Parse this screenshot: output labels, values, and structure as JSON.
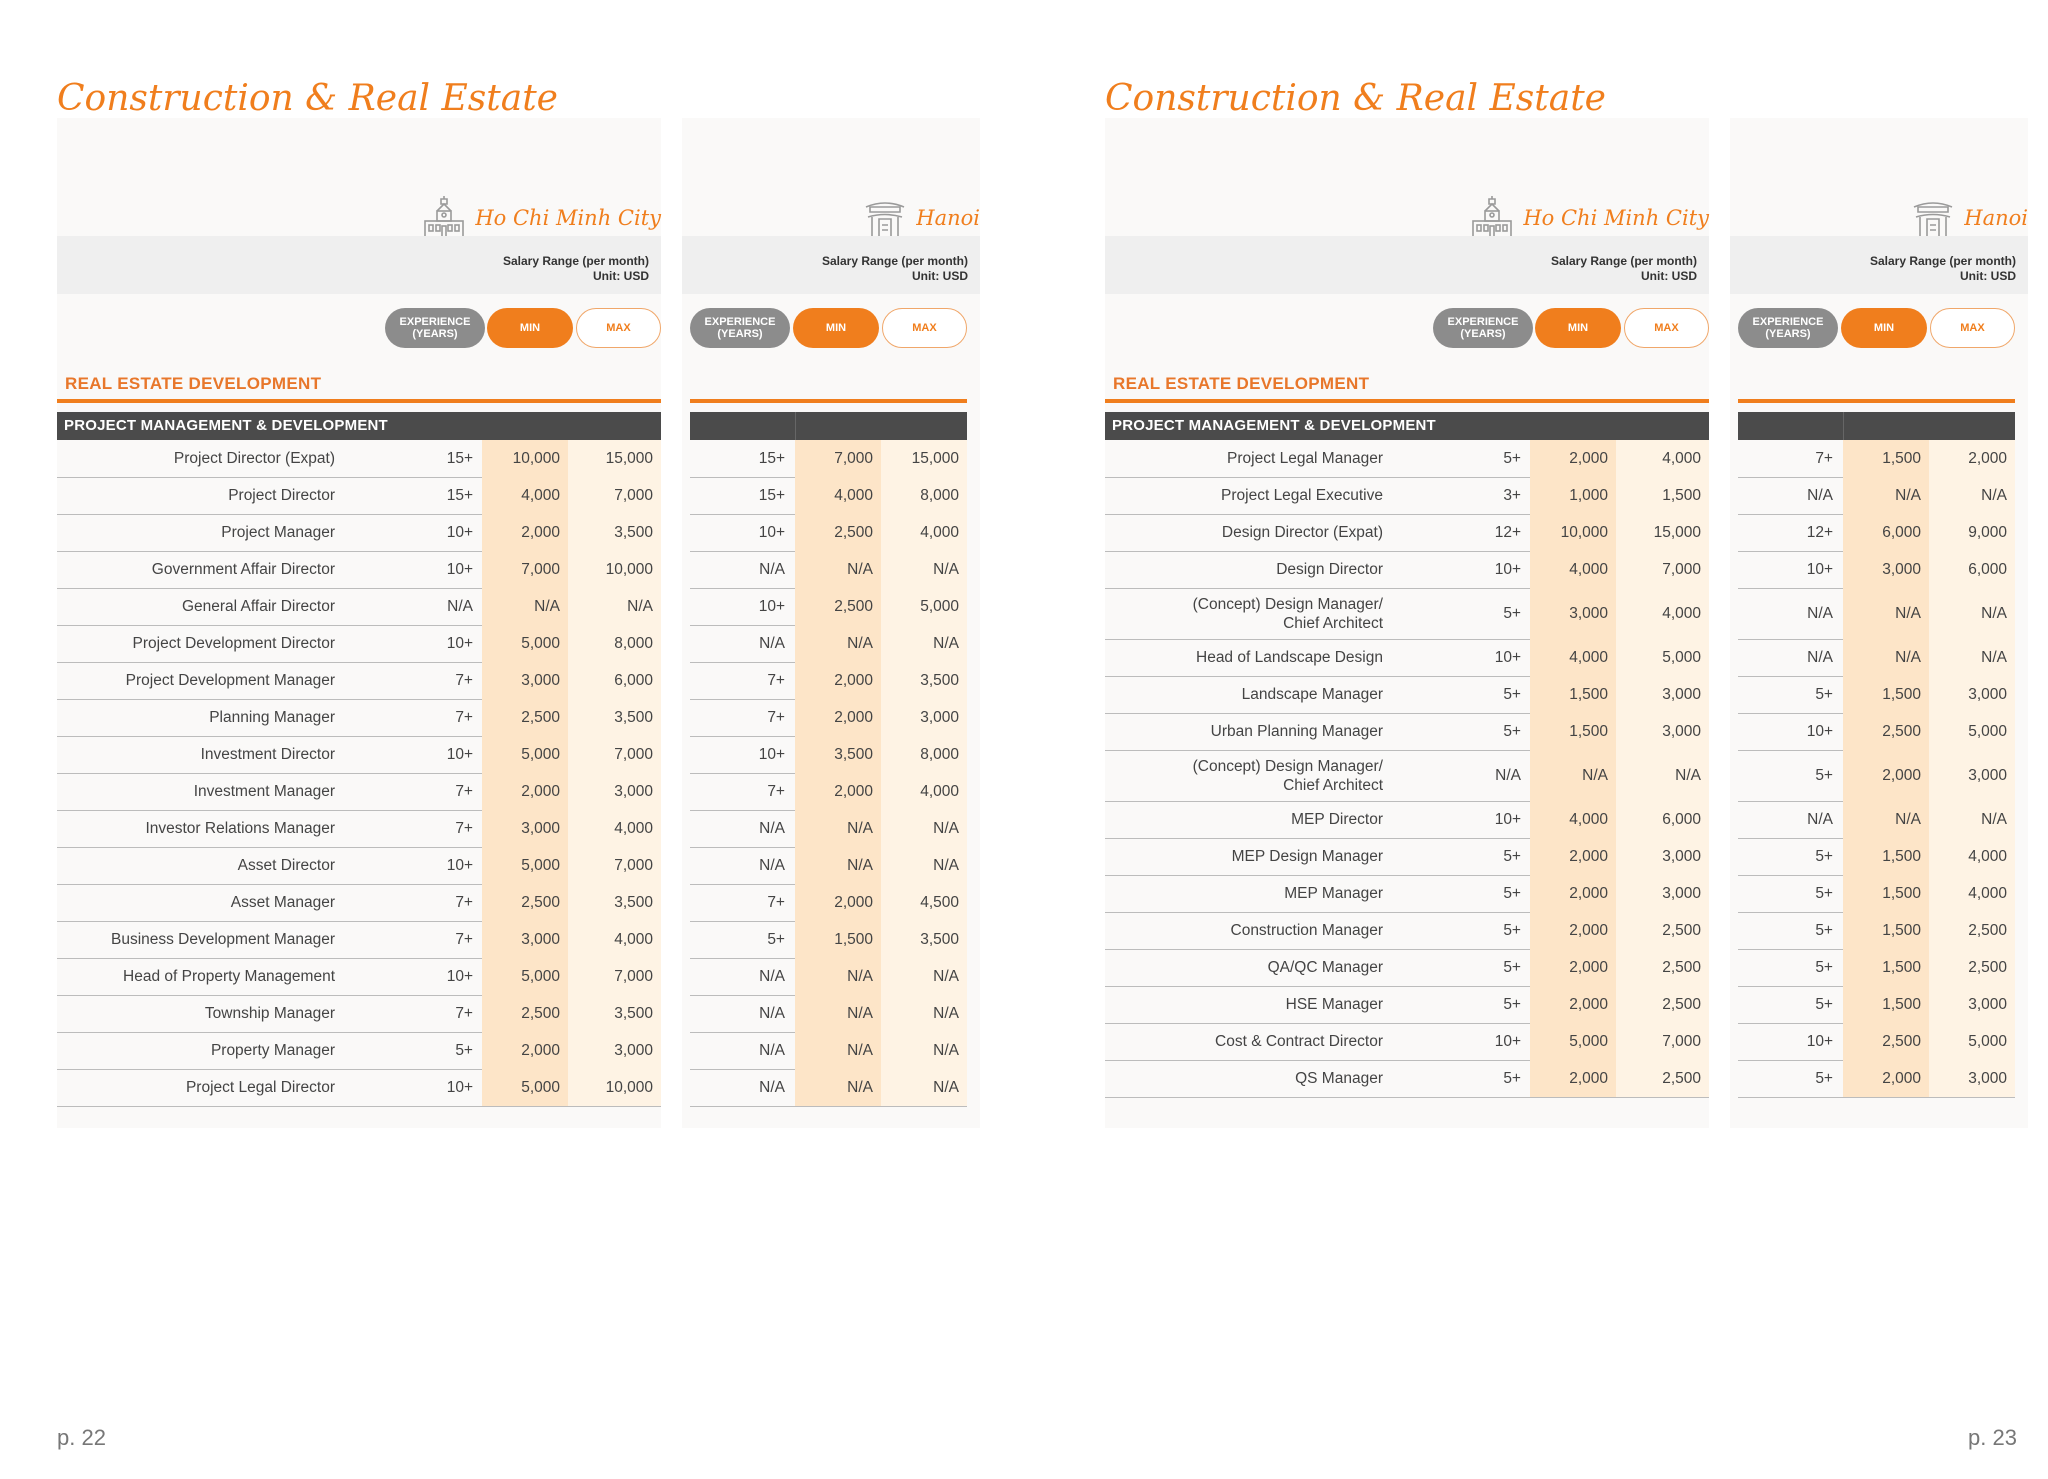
{
  "pages": [
    {
      "title": "Construction & Real Estate",
      "page_number": "p. 22",
      "hcm_city": "Ho Chi Minh City",
      "hanoi_city": "Hanoi",
      "salary_range": "Salary Range (per month)",
      "unit": "Unit: USD",
      "pill_experience": "EXPERIENCE (YEARS)",
      "pill_min": "MIN",
      "pill_max": "MAX",
      "section": "REAL ESTATE DEVELOPMENT",
      "table_header": "PROJECT MANAGEMENT & DEVELOPMENT",
      "rows": [
        {
          "role": "Project Director (Expat)",
          "hcm": [
            "15+",
            "10,000",
            "15,000"
          ],
          "hn": [
            "15+",
            "7,000",
            "15,000"
          ]
        },
        {
          "role": "Project Director",
          "hcm": [
            "15+",
            "4,000",
            "7,000"
          ],
          "hn": [
            "15+",
            "4,000",
            "8,000"
          ]
        },
        {
          "role": "Project Manager",
          "hcm": [
            "10+",
            "2,000",
            "3,500"
          ],
          "hn": [
            "10+",
            "2,500",
            "4,000"
          ]
        },
        {
          "role": "Government Affair Director",
          "hcm": [
            "10+",
            "7,000",
            "10,000"
          ],
          "hn": [
            "N/A",
            "N/A",
            "N/A"
          ]
        },
        {
          "role": "General Affair Director",
          "hcm": [
            "N/A",
            "N/A",
            "N/A"
          ],
          "hn": [
            "10+",
            "2,500",
            "5,000"
          ]
        },
        {
          "role": "Project Development Director",
          "hcm": [
            "10+",
            "5,000",
            "8,000"
          ],
          "hn": [
            "N/A",
            "N/A",
            "N/A"
          ]
        },
        {
          "role": "Project Development Manager",
          "hcm": [
            "7+",
            "3,000",
            "6,000"
          ],
          "hn": [
            "7+",
            "2,000",
            "3,500"
          ]
        },
        {
          "role": "Planning Manager",
          "hcm": [
            "7+",
            "2,500",
            "3,500"
          ],
          "hn": [
            "7+",
            "2,000",
            "3,000"
          ]
        },
        {
          "role": "Investment Director",
          "hcm": [
            "10+",
            "5,000",
            "7,000"
          ],
          "hn": [
            "10+",
            "3,500",
            "8,000"
          ]
        },
        {
          "role": "Investment Manager",
          "hcm": [
            "7+",
            "2,000",
            "3,000"
          ],
          "hn": [
            "7+",
            "2,000",
            "4,000"
          ]
        },
        {
          "role": "Investor Relations Manager",
          "hcm": [
            "7+",
            "3,000",
            "4,000"
          ],
          "hn": [
            "N/A",
            "N/A",
            "N/A"
          ]
        },
        {
          "role": "Asset Director",
          "hcm": [
            "10+",
            "5,000",
            "7,000"
          ],
          "hn": [
            "N/A",
            "N/A",
            "N/A"
          ]
        },
        {
          "role": "Asset Manager",
          "hcm": [
            "7+",
            "2,500",
            "3,500"
          ],
          "hn": [
            "7+",
            "2,000",
            "4,500"
          ]
        },
        {
          "role": "Business Development Manager",
          "hcm": [
            "7+",
            "3,000",
            "4,000"
          ],
          "hn": [
            "5+",
            "1,500",
            "3,500"
          ]
        },
        {
          "role": "Head of Property Management",
          "hcm": [
            "10+",
            "5,000",
            "7,000"
          ],
          "hn": [
            "N/A",
            "N/A",
            "N/A"
          ]
        },
        {
          "role": "Township Manager",
          "hcm": [
            "7+",
            "2,500",
            "3,500"
          ],
          "hn": [
            "N/A",
            "N/A",
            "N/A"
          ]
        },
        {
          "role": "Property Manager",
          "hcm": [
            "5+",
            "2,000",
            "3,000"
          ],
          "hn": [
            "N/A",
            "N/A",
            "N/A"
          ]
        },
        {
          "role": "Project Legal Director",
          "hcm": [
            "10+",
            "5,000",
            "10,000"
          ],
          "hn": [
            "N/A",
            "N/A",
            "N/A"
          ]
        }
      ]
    },
    {
      "title": "Construction & Real Estate",
      "page_number": "p. 23",
      "hcm_city": "Ho Chi Minh City",
      "hanoi_city": "Hanoi",
      "salary_range": "Salary Range (per month)",
      "unit": "Unit: USD",
      "pill_experience": "EXPERIENCE (YEARS)",
      "pill_min": "MIN",
      "pill_max": "MAX",
      "section": "REAL ESTATE DEVELOPMENT",
      "table_header": "PROJECT MANAGEMENT & DEVELOPMENT",
      "rows": [
        {
          "role": "Project Legal Manager",
          "hcm": [
            "5+",
            "2,000",
            "4,000"
          ],
          "hn": [
            "7+",
            "1,500",
            "2,000"
          ]
        },
        {
          "role": "Project Legal Executive",
          "hcm": [
            "3+",
            "1,000",
            "1,500"
          ],
          "hn": [
            "N/A",
            "N/A",
            "N/A"
          ]
        },
        {
          "role": "Design Director (Expat)",
          "hcm": [
            "12+",
            "10,000",
            "15,000"
          ],
          "hn": [
            "12+",
            "6,000",
            "9,000"
          ]
        },
        {
          "role": "Design Director",
          "hcm": [
            "10+",
            "4,000",
            "7,000"
          ],
          "hn": [
            "10+",
            "3,000",
            "6,000"
          ]
        },
        {
          "role": "(Concept) Design Manager/\nChief Architect",
          "hcm": [
            "5+",
            "3,000",
            "4,000"
          ],
          "hn": [
            "N/A",
            "N/A",
            "N/A"
          ]
        },
        {
          "role": "Head of Landscape Design",
          "hcm": [
            "10+",
            "4,000",
            "5,000"
          ],
          "hn": [
            "N/A",
            "N/A",
            "N/A"
          ]
        },
        {
          "role": "Landscape Manager",
          "hcm": [
            "5+",
            "1,500",
            "3,000"
          ],
          "hn": [
            "5+",
            "1,500",
            "3,000"
          ]
        },
        {
          "role": "Urban Planning Manager",
          "hcm": [
            "5+",
            "1,500",
            "3,000"
          ],
          "hn": [
            "10+",
            "2,500",
            "5,000"
          ]
        },
        {
          "role": "(Concept) Design Manager/\nChief Architect",
          "hcm": [
            "N/A",
            "N/A",
            "N/A"
          ],
          "hn": [
            "5+",
            "2,000",
            "3,000"
          ]
        },
        {
          "role": "MEP Director",
          "hcm": [
            "10+",
            "4,000",
            "6,000"
          ],
          "hn": [
            "N/A",
            "N/A",
            "N/A"
          ]
        },
        {
          "role": "MEP Design Manager",
          "hcm": [
            "5+",
            "2,000",
            "3,000"
          ],
          "hn": [
            "5+",
            "1,500",
            "4,000"
          ]
        },
        {
          "role": "MEP Manager",
          "hcm": [
            "5+",
            "2,000",
            "3,000"
          ],
          "hn": [
            "5+",
            "1,500",
            "4,000"
          ]
        },
        {
          "role": "Construction Manager",
          "hcm": [
            "5+",
            "2,000",
            "2,500"
          ],
          "hn": [
            "5+",
            "1,500",
            "2,500"
          ]
        },
        {
          "role": "QA/QC Manager",
          "hcm": [
            "5+",
            "2,000",
            "2,500"
          ],
          "hn": [
            "5+",
            "1,500",
            "2,500"
          ]
        },
        {
          "role": "HSE Manager",
          "hcm": [
            "5+",
            "2,000",
            "2,500"
          ],
          "hn": [
            "5+",
            "1,500",
            "3,000"
          ]
        },
        {
          "role": "Cost & Contract Director",
          "hcm": [
            "10+",
            "5,000",
            "7,000"
          ],
          "hn": [
            "10+",
            "2,500",
            "5,000"
          ]
        },
        {
          "role": "QS Manager",
          "hcm": [
            "5+",
            "2,000",
            "2,500"
          ],
          "hn": [
            "5+",
            "2,000",
            "3,000"
          ]
        }
      ]
    }
  ],
  "colors": {
    "accent": "#f07e1d",
    "header_dark": "#4b4b4b",
    "min_col": "#fde5c8",
    "max_col": "#fef3e4",
    "pill_grey": "#8c8c8c"
  },
  "icons": {
    "hcm": "city-hall-icon",
    "hanoi": "pagoda-gate-icon"
  }
}
